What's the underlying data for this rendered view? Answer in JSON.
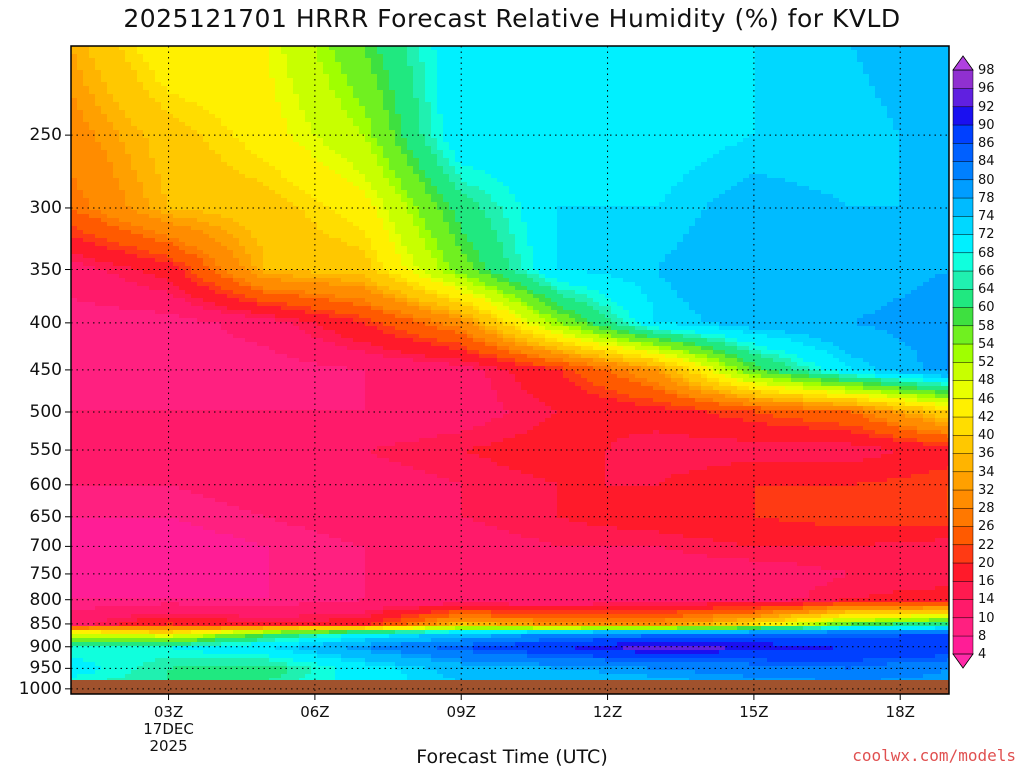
{
  "chart_data": {
    "type": "heatmap",
    "title": "2025121701 HRRR Forecast Relative Humidity (%) for KVLD",
    "xlabel": "Forecast Time (UTC)",
    "credit": "coolwx.com/models",
    "x_ticks": [
      {
        "label": "03Z",
        "value": 3,
        "sub": [
          "17DEC",
          "2025"
        ]
      },
      {
        "label": "06Z",
        "value": 6
      },
      {
        "label": "09Z",
        "value": 9
      },
      {
        "label": "12Z",
        "value": 12
      },
      {
        "label": "15Z",
        "value": 15
      },
      {
        "label": "18Z",
        "value": 18
      }
    ],
    "xlim": [
      1,
      19
    ],
    "y_ticks": [
      250,
      300,
      350,
      400,
      450,
      500,
      550,
      600,
      650,
      700,
      750,
      800,
      850,
      900,
      950,
      1000
    ],
    "y_scale": "log",
    "ylim": [
      1013,
      200
    ],
    "ground_color": "#a0522d",
    "colorbar": {
      "levels": [
        4,
        8,
        10,
        14,
        16,
        20,
        22,
        26,
        28,
        32,
        34,
        36,
        40,
        42,
        46,
        48,
        52,
        54,
        58,
        60,
        64,
        66,
        68,
        72,
        74,
        78,
        80,
        84,
        86,
        90,
        92,
        96,
        98
      ],
      "colors": [
        "#ff2aa8",
        "#ff1d96",
        "#ff2080",
        "#ff1a6a",
        "#ff1a4f",
        "#ff1a2a",
        "#ff3a14",
        "#ff5a00",
        "#ff7800",
        "#ff8c00",
        "#ffa000",
        "#ffb400",
        "#ffc800",
        "#ffdd00",
        "#fff000",
        "#e8ff00",
        "#c8ff00",
        "#a0ff00",
        "#70f020",
        "#3ee040",
        "#20e880",
        "#20f0b0",
        "#10ffdd",
        "#00f0ff",
        "#00d8ff",
        "#00bbff",
        "#009dff",
        "#0080ff",
        "#0060ff",
        "#0040ff",
        "#1a10f0",
        "#6020e0",
        "#9030d0",
        "#b040e0"
      ]
    },
    "field": {
      "x": [
        1,
        3,
        5,
        7,
        9,
        11,
        13,
        15,
        17,
        19
      ],
      "p": [
        200,
        250,
        300,
        350,
        400,
        450,
        500,
        550,
        600,
        650,
        700,
        750,
        800,
        850,
        870,
        900,
        950,
        1013
      ],
      "values": [
        [
          34,
          46,
          46,
          58,
          72,
          68,
          70,
          72,
          74,
          78
        ],
        [
          30,
          38,
          44,
          52,
          72,
          70,
          70,
          72,
          72,
          76
        ],
        [
          26,
          36,
          38,
          44,
          62,
          72,
          72,
          76,
          74,
          74
        ],
        [
          12,
          18,
          36,
          38,
          56,
          72,
          74,
          78,
          76,
          78
        ],
        [
          8,
          8,
          12,
          20,
          30,
          54,
          72,
          76,
          78,
          80
        ],
        [
          8,
          8,
          8,
          10,
          12,
          20,
          32,
          58,
          72,
          80
        ],
        [
          10,
          10,
          10,
          10,
          12,
          16,
          18,
          22,
          26,
          40
        ],
        [
          10,
          10,
          12,
          14,
          16,
          18,
          14,
          14,
          14,
          18
        ],
        [
          10,
          10,
          12,
          12,
          14,
          16,
          16,
          20,
          20,
          22
        ],
        [
          8,
          8,
          10,
          12,
          14,
          16,
          18,
          20,
          22,
          22
        ],
        [
          6,
          6,
          8,
          10,
          12,
          14,
          14,
          16,
          16,
          14
        ],
        [
          6,
          6,
          8,
          10,
          10,
          12,
          12,
          12,
          14,
          14
        ],
        [
          8,
          8,
          8,
          10,
          10,
          10,
          12,
          12,
          16,
          18
        ],
        [
          12,
          20,
          16,
          18,
          36,
          30,
          30,
          40,
          58,
          62
        ],
        [
          48,
          42,
          58,
          68,
          74,
          80,
          82,
          84,
          84,
          86
        ],
        [
          66,
          68,
          72,
          80,
          86,
          90,
          94,
          92,
          90,
          90
        ],
        [
          70,
          64,
          62,
          70,
          76,
          78,
          80,
          82,
          84,
          80
        ],
        [
          64,
          64,
          66,
          70,
          72,
          72,
          74,
          76,
          76,
          78
        ]
      ]
    }
  }
}
